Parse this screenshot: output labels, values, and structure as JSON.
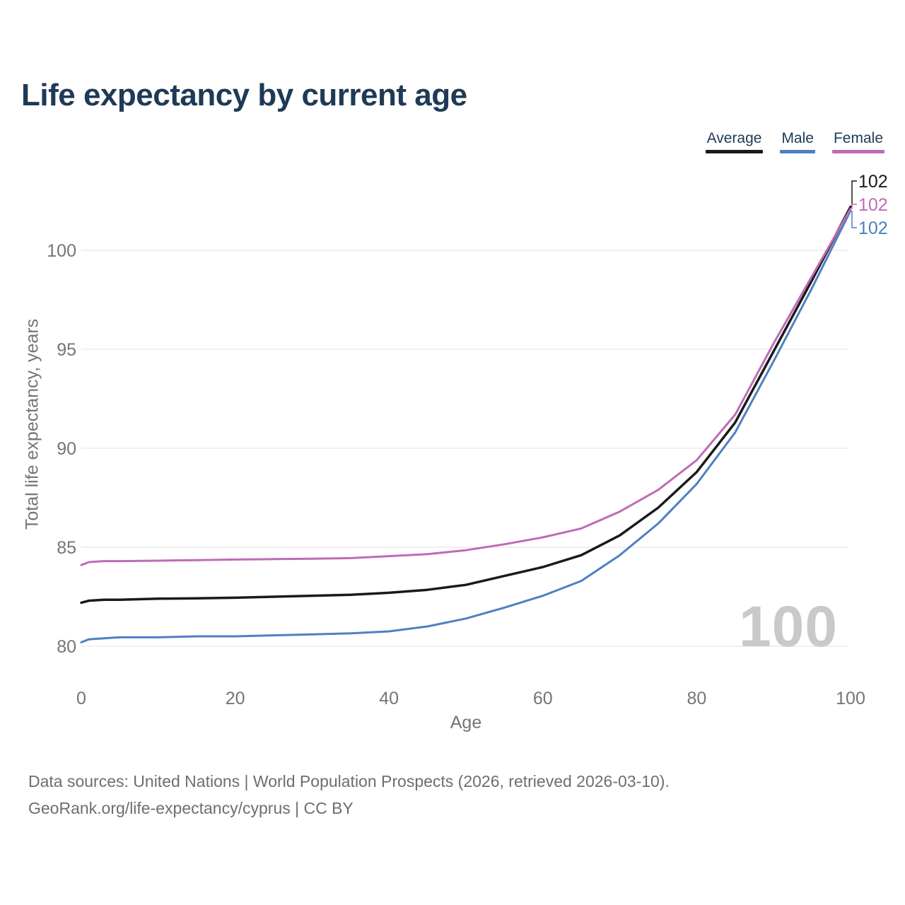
{
  "title": "Life expectancy by current age",
  "axes": {
    "xlabel": "Age",
    "ylabel": "Total life expectancy, years"
  },
  "watermark": "100",
  "footer": {
    "line1": "Data sources: United Nations | World Population Prospects (2026, retrieved 2026-03-10).",
    "line2": "GeoRank.org/life-expectancy/cyprus | CC BY"
  },
  "colors": {
    "title_text": "#1e3a56",
    "axis_text": "#757575",
    "gridline": "#ececec",
    "watermark": "#c9c9c9",
    "footer_text": "#6e6e6e"
  },
  "chart_data": {
    "type": "line",
    "title": "Life expectancy by current age",
    "xlabel": "Age",
    "ylabel": "Total life expectancy, years",
    "xlim": [
      0,
      100
    ],
    "ylim": [
      79,
      103.5
    ],
    "x_ticks": [
      0,
      20,
      40,
      60,
      80,
      100
    ],
    "y_ticks": [
      80,
      85,
      90,
      95,
      100
    ],
    "grid": "horizontal",
    "legend_position": "top-right",
    "x": [
      0,
      1,
      3,
      5,
      10,
      15,
      20,
      25,
      30,
      35,
      40,
      45,
      50,
      55,
      60,
      65,
      70,
      75,
      80,
      85,
      90,
      95,
      100
    ],
    "series": [
      {
        "name": "Average",
        "color": "#1a1a1a",
        "end_label": "102",
        "values": [
          82.2,
          82.3,
          82.35,
          82.35,
          82.4,
          82.42,
          82.45,
          82.5,
          82.55,
          82.6,
          82.7,
          82.85,
          83.1,
          83.55,
          84.0,
          84.6,
          85.6,
          87.0,
          88.8,
          91.3,
          94.9,
          98.5,
          102.2
        ]
      },
      {
        "name": "Male",
        "color": "#4f7fc2",
        "end_label": "102",
        "values": [
          80.2,
          80.35,
          80.4,
          80.45,
          80.45,
          80.5,
          80.5,
          80.55,
          80.6,
          80.65,
          80.75,
          81.0,
          81.4,
          81.95,
          82.55,
          83.3,
          84.6,
          86.2,
          88.2,
          90.8,
          94.4,
          98.1,
          102.0
        ]
      },
      {
        "name": "Female",
        "color": "#bf6bb5",
        "end_label": "102",
        "values": [
          84.1,
          84.25,
          84.3,
          84.3,
          84.32,
          84.35,
          84.38,
          84.4,
          84.42,
          84.45,
          84.55,
          84.65,
          84.85,
          85.15,
          85.5,
          85.95,
          86.8,
          87.9,
          89.4,
          91.7,
          95.3,
          98.7,
          102.1
        ]
      }
    ]
  }
}
